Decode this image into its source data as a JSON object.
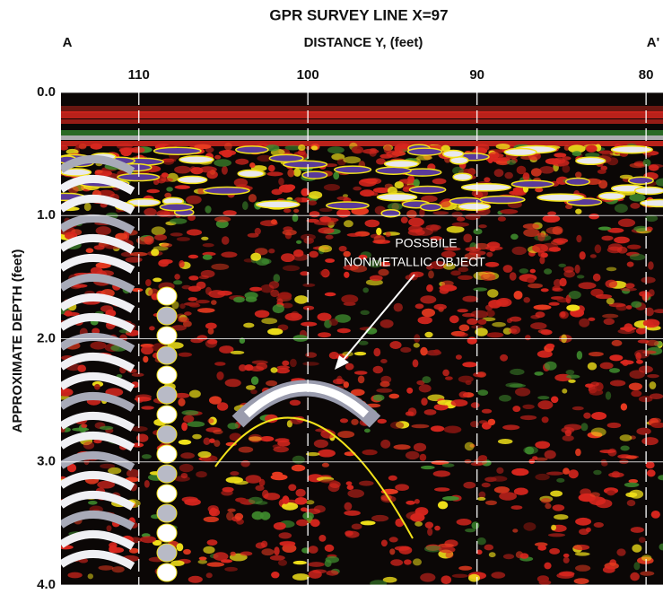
{
  "chart_data": {
    "type": "radargram",
    "title": "GPR SURVEY LINE X=97",
    "x_label": "DISTANCE Y, (feet)",
    "y_label": "APPROXIMATE DEPTH (feet)",
    "start_label": "A",
    "end_label": "A'",
    "annotation": [
      "POSSBILE",
      "NONMETALLIC OBJECT"
    ],
    "xlim": [
      114.6,
      79
    ],
    "xticks": [
      110,
      100,
      90,
      80
    ],
    "ylim": [
      0,
      4
    ],
    "yticks": [
      {
        "value": 0,
        "label": "0.0"
      },
      {
        "value": 1,
        "label": "1.0"
      },
      {
        "value": 2,
        "label": "2.0"
      },
      {
        "value": 3,
        "label": "3.0"
      },
      {
        "value": 4,
        "label": "4.0"
      }
    ],
    "grid": true
  }
}
